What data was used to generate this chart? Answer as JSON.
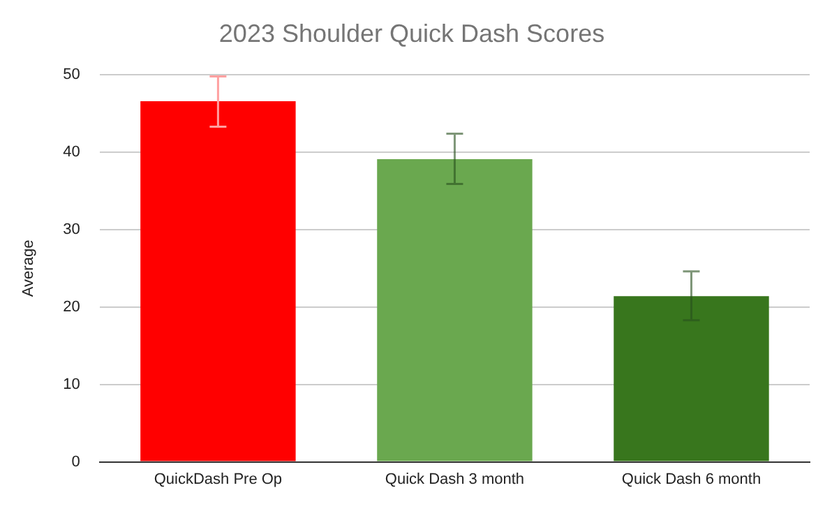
{
  "chart_data": {
    "type": "bar",
    "title": "2023 Shoulder Quick Dash Scores",
    "ylabel": "Average",
    "categories": [
      "QuickDash Pre Op",
      "Quick Dash 3 month",
      "Quick Dash 6 month"
    ],
    "values": [
      46.6,
      39.1,
      21.4
    ],
    "colors": [
      "#ff0000",
      "#6aa84f",
      "#38761d"
    ],
    "errors": [
      [
        43.3,
        49.8
      ],
      [
        35.9,
        42.4
      ],
      [
        18.3,
        24.6
      ]
    ],
    "ylim": [
      0,
      50
    ],
    "yticks": [
      0,
      10,
      20,
      30,
      40,
      50
    ],
    "grid": "y",
    "legend": false
  }
}
